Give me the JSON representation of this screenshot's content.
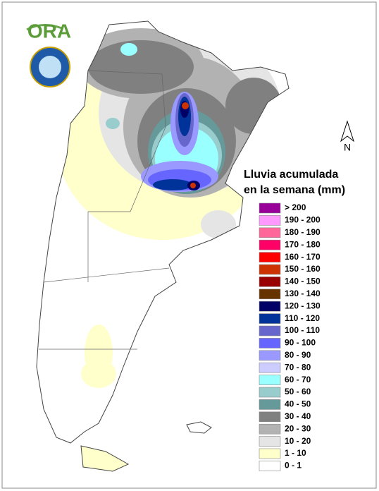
{
  "logo": {
    "text": "ORA"
  },
  "north_arrow": {
    "label": "N"
  },
  "legend": {
    "title": [
      "Lluvia acumulada",
      "en la semana (mm)"
    ],
    "entries": [
      {
        "label": "> 200",
        "color": "#990099"
      },
      {
        "label": "190 - 200",
        "color": "#ff99ff"
      },
      {
        "label": "180 - 190",
        "color": "#ff6699"
      },
      {
        "label": "170 - 180",
        "color": "#ff0066"
      },
      {
        "label": "160 - 170",
        "color": "#ff0000"
      },
      {
        "label": "150 - 160",
        "color": "#cc3300"
      },
      {
        "label": "140 - 150",
        "color": "#990000"
      },
      {
        "label": "130 - 140",
        "color": "#663300"
      },
      {
        "label": "120 - 130",
        "color": "#000066"
      },
      {
        "label": "110 - 120",
        "color": "#003399"
      },
      {
        "label": "100 - 110",
        "color": "#6666cc"
      },
      {
        "label": "90 - 100",
        "color": "#6666ff"
      },
      {
        "label": "80 - 90",
        "color": "#9999ff"
      },
      {
        "label": "70 - 80",
        "color": "#ccccff"
      },
      {
        "label": "60 - 70",
        "color": "#99ffff"
      },
      {
        "label": "50 - 60",
        "color": "#99cccc"
      },
      {
        "label": "40 - 50",
        "color": "#669999"
      },
      {
        "label": "30 - 40",
        "color": "#808080"
      },
      {
        "label": "20 - 30",
        "color": "#b2b2b2"
      },
      {
        "label": "10 - 20",
        "color": "#e5e5e5"
      },
      {
        "label": "1 - 10",
        "color": "#ffffcc"
      },
      {
        "label": "0 - 1",
        "color": "#ffffff"
      }
    ]
  }
}
